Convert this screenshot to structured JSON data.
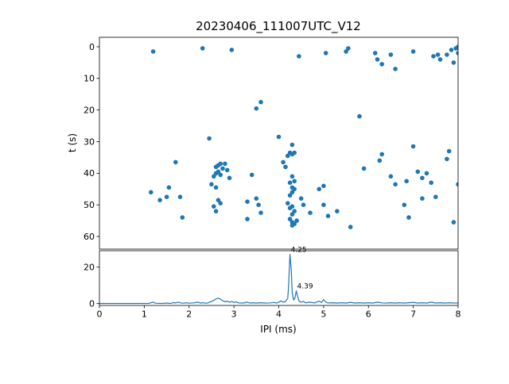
{
  "figure": {
    "title": "20230406_111007UTC_V12",
    "xlabel": "IPI (ms)",
    "ylabel": "t (s)"
  },
  "chart_data": [
    {
      "type": "scatter",
      "title": "20230406_111007UTC_V12",
      "xlabel": "",
      "ylabel": "t (s)",
      "xlim": [
        0,
        8
      ],
      "ylim": [
        -3,
        64
      ],
      "inverted": true,
      "yticks": [
        0,
        10,
        20,
        30,
        40,
        50,
        60
      ],
      "marker_color": "#1f77b4",
      "points": [
        [
          1.2,
          1.5
        ],
        [
          2.3,
          0.5
        ],
        [
          2.95,
          1
        ],
        [
          4.45,
          3
        ],
        [
          5.05,
          2
        ],
        [
          5.5,
          1.5
        ],
        [
          5.55,
          0.5
        ],
        [
          6.15,
          2
        ],
        [
          6.2,
          4
        ],
        [
          6.3,
          5.5
        ],
        [
          6.6,
          7
        ],
        [
          7.0,
          1.5
        ],
        [
          7.45,
          3
        ],
        [
          7.55,
          2.5
        ],
        [
          7.6,
          4
        ],
        [
          7.85,
          1
        ],
        [
          7.95,
          0.5
        ],
        [
          8.0,
          0
        ],
        [
          7.9,
          5
        ],
        [
          6.5,
          2.5
        ],
        [
          8.0,
          2
        ],
        [
          7.75,
          2.5
        ],
        [
          3.6,
          17.5
        ],
        [
          3.5,
          19.5
        ],
        [
          5.8,
          22
        ],
        [
          2.45,
          29
        ],
        [
          4.0,
          28.5
        ],
        [
          4.3,
          31
        ],
        [
          4.25,
          33.5
        ],
        [
          4.3,
          34
        ],
        [
          4.35,
          33.5
        ],
        [
          6.3,
          34
        ],
        [
          7.0,
          31.5
        ],
        [
          7.8,
          33
        ],
        [
          4.2,
          34.5
        ],
        [
          2.55,
          41
        ],
        [
          2.6,
          38
        ],
        [
          2.6,
          40
        ],
        [
          2.65,
          37.5
        ],
        [
          2.65,
          39.5
        ],
        [
          2.7,
          37
        ],
        [
          2.7,
          40.5
        ],
        [
          2.75,
          38.5
        ],
        [
          2.8,
          37
        ],
        [
          2.85,
          39
        ],
        [
          2.9,
          41.5
        ],
        [
          1.7,
          36.5
        ],
        [
          3.4,
          40.5
        ],
        [
          4.1,
          36.5
        ],
        [
          4.15,
          38
        ],
        [
          4.3,
          41
        ],
        [
          4.35,
          42.5
        ],
        [
          5.9,
          38.5
        ],
        [
          6.25,
          36
        ],
        [
          6.5,
          41
        ],
        [
          7.1,
          39.5
        ],
        [
          7.3,
          40
        ],
        [
          7.75,
          35.5
        ],
        [
          7.2,
          41.5
        ],
        [
          1.15,
          46
        ],
        [
          1.55,
          44.5
        ],
        [
          2.5,
          43.5
        ],
        [
          2.6,
          44.5
        ],
        [
          4.25,
          43
        ],
        [
          4.3,
          44.5
        ],
        [
          4.3,
          46
        ],
        [
          4.35,
          45
        ],
        [
          4.9,
          45
        ],
        [
          5.0,
          44
        ],
        [
          6.6,
          43.5
        ],
        [
          6.85,
          42.5
        ],
        [
          7.4,
          43
        ],
        [
          8.0,
          43.5
        ],
        [
          4.25,
          47
        ],
        [
          1.35,
          48.5
        ],
        [
          1.5,
          47.5
        ],
        [
          1.8,
          47.5
        ],
        [
          2.55,
          50.5
        ],
        [
          2.6,
          52
        ],
        [
          2.65,
          48.5
        ],
        [
          2.7,
          49.5
        ],
        [
          3.3,
          49
        ],
        [
          3.5,
          48
        ],
        [
          3.55,
          50
        ],
        [
          3.6,
          52.5
        ],
        [
          4.2,
          49.5
        ],
        [
          4.25,
          51
        ],
        [
          4.3,
          50.5
        ],
        [
          4.35,
          52
        ],
        [
          4.5,
          48
        ],
        [
          4.55,
          50
        ],
        [
          4.7,
          52.5
        ],
        [
          5.0,
          50
        ],
        [
          5.1,
          53.5
        ],
        [
          5.3,
          52
        ],
        [
          6.8,
          50
        ],
        [
          7.2,
          48
        ],
        [
          7.5,
          47.5
        ],
        [
          4.3,
          53
        ],
        [
          1.85,
          54
        ],
        [
          3.3,
          54.5
        ],
        [
          4.25,
          54.5
        ],
        [
          4.3,
          55.5
        ],
        [
          4.35,
          56
        ],
        [
          4.4,
          55
        ],
        [
          5.6,
          57
        ],
        [
          6.9,
          54
        ],
        [
          7.9,
          55.5
        ],
        [
          4.3,
          56.5
        ]
      ]
    },
    {
      "type": "line",
      "title": "",
      "xlabel": "IPI (ms)",
      "ylabel": "",
      "xlim": [
        0,
        8
      ],
      "ylim": [
        -1,
        29
      ],
      "inverted": false,
      "xticks": [
        0,
        1,
        2,
        3,
        4,
        5,
        6,
        7,
        8
      ],
      "yticks": [
        0,
        20
      ],
      "line_color": "#1f77b4",
      "x": [
        0,
        0.3,
        0.6,
        0.9,
        1.0,
        1.1,
        1.15,
        1.2,
        1.25,
        1.4,
        1.5,
        1.6,
        1.65,
        1.7,
        1.75,
        1.85,
        1.95,
        2.0,
        2.1,
        2.2,
        2.25,
        2.3,
        2.4,
        2.5,
        2.55,
        2.6,
        2.65,
        2.7,
        2.75,
        2.8,
        2.85,
        2.9,
        2.95,
        3.0,
        3.05,
        3.1,
        3.2,
        3.3,
        3.35,
        3.4,
        3.5,
        3.6,
        3.7,
        3.8,
        3.9,
        3.95,
        4.0,
        4.05,
        4.1,
        4.15,
        4.2,
        4.22,
        4.25,
        4.28,
        4.3,
        4.33,
        4.36,
        4.39,
        4.42,
        4.45,
        4.5,
        4.55,
        4.6,
        4.7,
        4.8,
        4.9,
        4.95,
        5.0,
        5.05,
        5.1,
        5.2,
        5.3,
        5.4,
        5.5,
        5.6,
        5.7,
        5.8,
        5.9,
        6.0,
        6.1,
        6.2,
        6.3,
        6.4,
        6.5,
        6.6,
        6.7,
        6.8,
        6.9,
        7.0,
        7.1,
        7.2,
        7.3,
        7.4,
        7.5,
        7.6,
        7.7,
        7.8,
        7.9,
        8.0
      ],
      "y": [
        0.1,
        0.1,
        0.1,
        0.1,
        0.1,
        0.1,
        0.5,
        0.8,
        0.2,
        0.1,
        0.3,
        0.1,
        0.6,
        0.3,
        0.8,
        0.2,
        0.5,
        0.2,
        0.4,
        0.8,
        0.3,
        0.5,
        0.2,
        1.2,
        1.8,
        2.6,
        3.0,
        2.4,
        1.6,
        1.0,
        1.4,
        0.8,
        1.2,
        0.6,
        1.0,
        0.4,
        0.3,
        0.8,
        0.3,
        0.5,
        0.3,
        0.5,
        0.3,
        0.4,
        0.6,
        0.3,
        0.8,
        1.5,
        0.8,
        1.2,
        3.0,
        10,
        27,
        18,
        6,
        2,
        3,
        7,
        4,
        1.5,
        0.8,
        1.2,
        0.5,
        0.8,
        0.4,
        1.4,
        0.6,
        2.2,
        0.8,
        0.4,
        0.5,
        0.3,
        0.5,
        0.3,
        0.7,
        0.3,
        0.5,
        0.3,
        0.5,
        0.3,
        0.8,
        0.4,
        0.3,
        0.5,
        0.3,
        0.5,
        0.3,
        0.5,
        0.7,
        0.3,
        0.5,
        0.3,
        0.8,
        0.3,
        0.5,
        0.3,
        0.5,
        0.3,
        0.4
      ],
      "annotations": [
        {
          "x": 4.25,
          "y": 27,
          "label": "4.25"
        },
        {
          "x": 4.39,
          "y": 7,
          "label": "4.39"
        }
      ]
    }
  ]
}
